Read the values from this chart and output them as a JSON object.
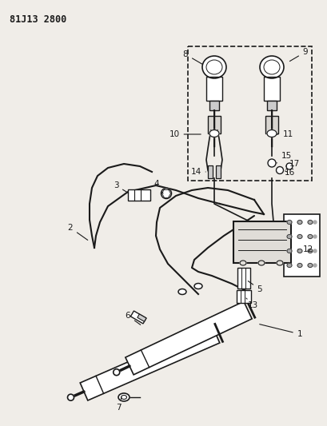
{
  "title_code": "81J13 2800",
  "bg_color": "#f0ede8",
  "line_color": "#1a1a1a",
  "fig_width": 4.09,
  "fig_height": 5.33,
  "dpi": 100
}
